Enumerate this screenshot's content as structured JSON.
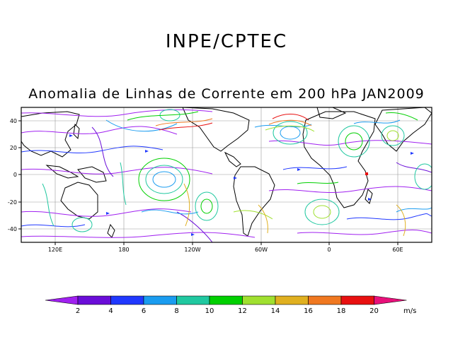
{
  "header": {
    "organization": "INPE/CPTEC"
  },
  "map": {
    "title": "Anomalia de Linhas de Corrente em 200 hPa JAN2009",
    "lat_labels": [
      "40",
      "20",
      "0",
      "-20",
      "-40"
    ],
    "lon_labels": [
      "120E",
      "180",
      "120W",
      "60W",
      "0",
      "60E"
    ]
  },
  "colorbar": {
    "unit": "m/s",
    "labels": [
      "2",
      "4",
      "6",
      "8",
      "10",
      "12",
      "14",
      "16",
      "18",
      "20"
    ],
    "colors": [
      "#a020f0",
      "#6a0dd8",
      "#2038ff",
      "#1a9cf0",
      "#20c8a0",
      "#00d000",
      "#a0e030",
      "#e0b020",
      "#f07820",
      "#e81010",
      "#e8107a"
    ]
  }
}
